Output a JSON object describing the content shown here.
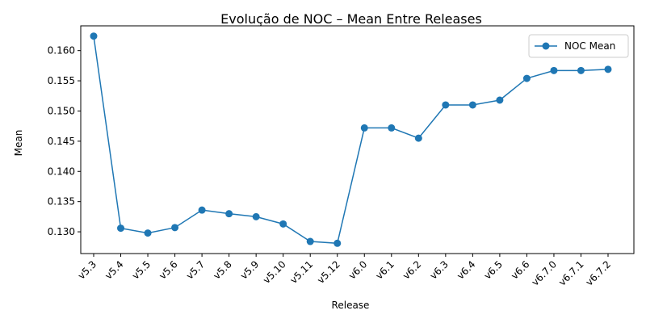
{
  "chart_data": {
    "type": "line",
    "title": "Evolução de NOC – Mean Entre Releases",
    "xlabel": "Release",
    "ylabel": "Mean",
    "categories": [
      "v5.3",
      "v5.4",
      "v5.5",
      "v5.6",
      "v5.7",
      "v5.8",
      "v5.9",
      "v5.10",
      "v5.11",
      "v5.12",
      "v6.0",
      "v6.1",
      "v6.2",
      "v6.3",
      "v6.4",
      "v6.5",
      "v6.6",
      "v6.7.0",
      "v6.7.1",
      "v6.7.2"
    ],
    "series": [
      {
        "name": "NOC Mean",
        "color": "#1f77b4",
        "marker": "circle",
        "values": [
          0.1624,
          0.1306,
          0.1298,
          0.1307,
          0.1336,
          0.133,
          0.1325,
          0.1313,
          0.1284,
          0.1281,
          0.1472,
          0.1472,
          0.1455,
          0.151,
          0.151,
          0.1518,
          0.1554,
          0.1567,
          0.1567,
          0.1569
        ]
      }
    ],
    "ylim": [
      0.1264,
      0.1641
    ],
    "yticks": [
      0.13,
      0.135,
      0.14,
      0.145,
      0.15,
      0.155,
      0.16
    ],
    "ytick_labels": [
      "0.130",
      "0.135",
      "0.140",
      "0.145",
      "0.150",
      "0.155",
      "0.160"
    ],
    "grid": false,
    "legend_position": "top-right",
    "xtick_rotation": "45"
  }
}
